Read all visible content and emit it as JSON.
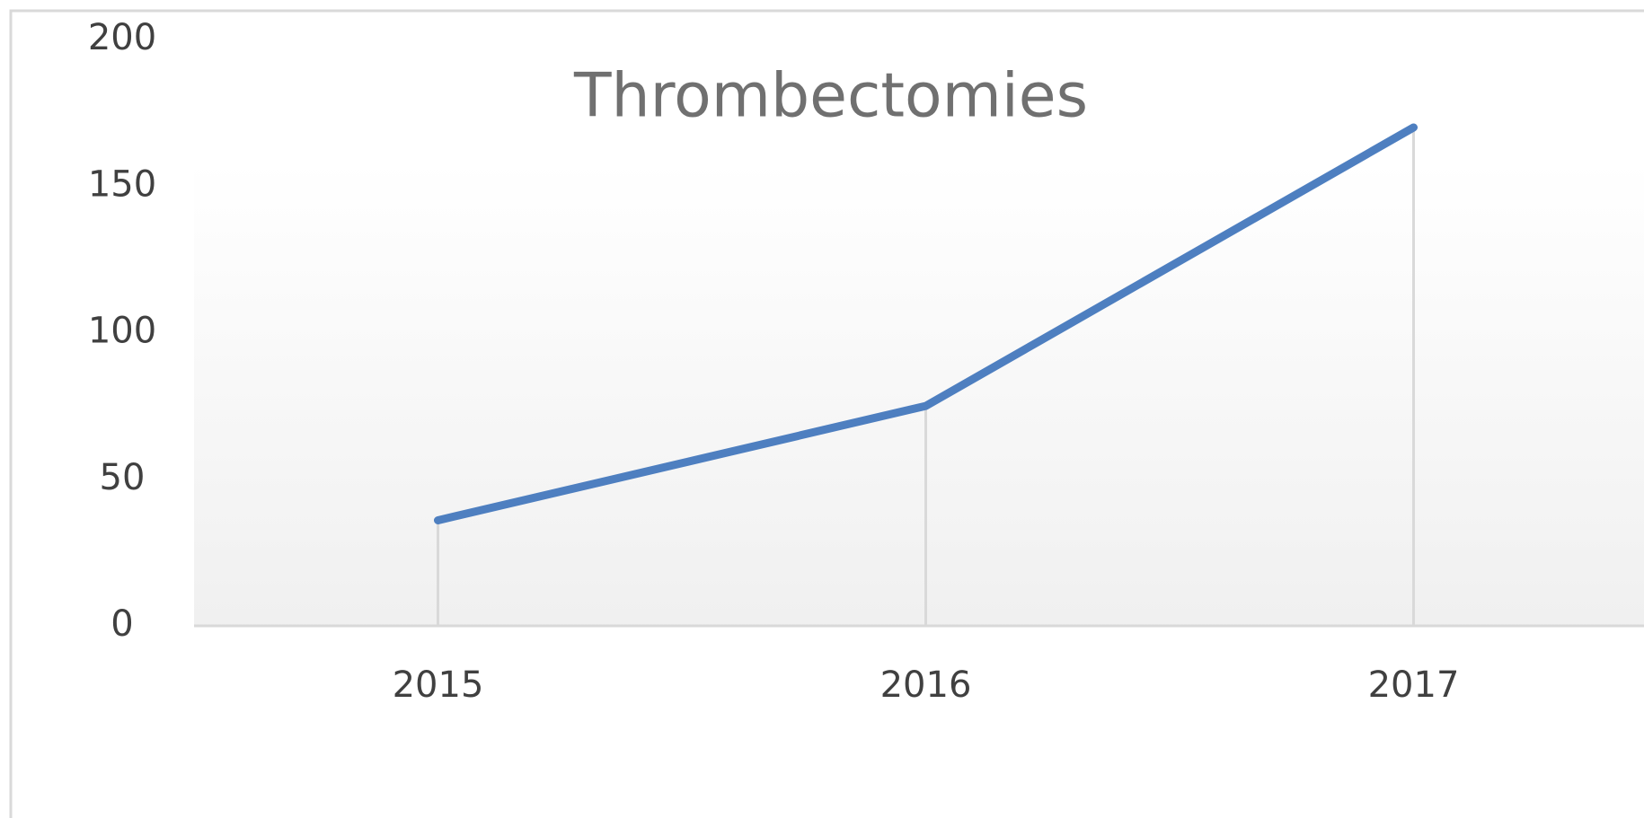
{
  "chart_data": {
    "type": "line",
    "title": "Thrombectomies",
    "categories": [
      "2015",
      "2016",
      "2017"
    ],
    "series": [
      {
        "name": "Thrombectomies",
        "color": "#4e7fc0",
        "values": [
          36,
          75,
          170
        ]
      }
    ],
    "ylim": [
      0,
      200
    ],
    "yticks": [
      0,
      50,
      100,
      150,
      200
    ],
    "drop_lines": true
  }
}
